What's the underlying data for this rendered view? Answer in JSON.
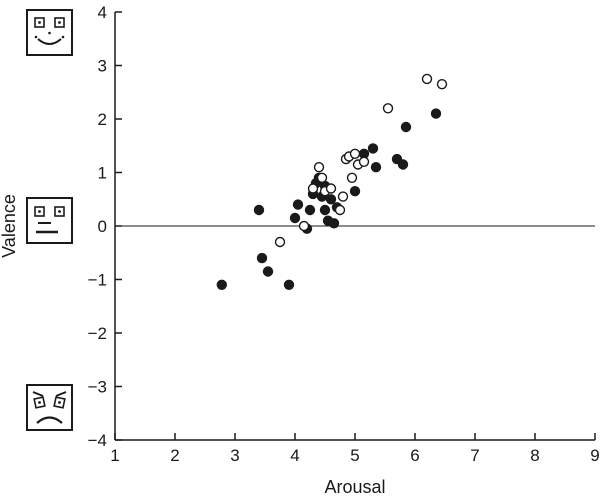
{
  "figure": {
    "background_color": "#ffffff",
    "axis_color": "#1a1a1a"
  },
  "icons": [
    {
      "name": "happy-face-icon"
    },
    {
      "name": "neutral-face-icon"
    },
    {
      "name": "sad-face-icon"
    }
  ],
  "chart_data": {
    "type": "scatter",
    "title": "",
    "xlabel": "Arousal",
    "ylabel": "Valence",
    "xlim": [
      1,
      9
    ],
    "ylim": [
      -4,
      4
    ],
    "xticks": [
      1,
      2,
      3,
      4,
      5,
      6,
      7,
      8,
      9
    ],
    "xtick_labels": [
      "1",
      "2",
      "3",
      "4",
      "5",
      "6",
      "7",
      "8",
      "9"
    ],
    "yticks": [
      -4,
      -3,
      -2,
      -1,
      0,
      1,
      2,
      3,
      4
    ],
    "ytick_labels": [
      "−4",
      "−3",
      "−2",
      "−1",
      "0",
      "1",
      "2",
      "3",
      "4"
    ],
    "grid": false,
    "legend": "none",
    "zero_line": true,
    "marker_radius": 4.5,
    "series": [
      {
        "name": "filled-markers",
        "marker": "filled-circle",
        "color": "#1a1a1a",
        "points": [
          [
            2.78,
            -1.1
          ],
          [
            3.4,
            0.3
          ],
          [
            3.45,
            -0.6
          ],
          [
            3.55,
            -0.85
          ],
          [
            3.9,
            -1.1
          ],
          [
            4.0,
            0.15
          ],
          [
            4.05,
            0.4
          ],
          [
            4.2,
            -0.05
          ],
          [
            4.25,
            0.3
          ],
          [
            4.3,
            0.6
          ],
          [
            4.35,
            0.8
          ],
          [
            4.4,
            0.9
          ],
          [
            4.45,
            0.55
          ],
          [
            4.5,
            0.75
          ],
          [
            4.5,
            0.3
          ],
          [
            4.55,
            0.1
          ],
          [
            4.6,
            0.5
          ],
          [
            4.65,
            0.05
          ],
          [
            4.7,
            0.35
          ],
          [
            5.0,
            0.65
          ],
          [
            5.15,
            1.35
          ],
          [
            5.3,
            1.45
          ],
          [
            5.35,
            1.1
          ],
          [
            5.7,
            1.25
          ],
          [
            5.8,
            1.15
          ],
          [
            5.85,
            1.85
          ],
          [
            6.35,
            2.1
          ]
        ]
      },
      {
        "name": "open-markers",
        "marker": "open-circle",
        "color": "#1a1a1a",
        "points": [
          [
            3.75,
            -0.3
          ],
          [
            4.15,
            0.0
          ],
          [
            4.3,
            0.7
          ],
          [
            4.4,
            1.1
          ],
          [
            4.45,
            0.9
          ],
          [
            4.5,
            0.65
          ],
          [
            4.6,
            0.7
          ],
          [
            4.75,
            0.3
          ],
          [
            4.8,
            0.55
          ],
          [
            4.85,
            1.25
          ],
          [
            4.9,
            1.3
          ],
          [
            4.95,
            0.9
          ],
          [
            5.0,
            1.35
          ],
          [
            5.05,
            1.15
          ],
          [
            5.15,
            1.2
          ],
          [
            5.55,
            2.2
          ],
          [
            6.2,
            2.75
          ],
          [
            6.45,
            2.65
          ]
        ]
      }
    ]
  }
}
